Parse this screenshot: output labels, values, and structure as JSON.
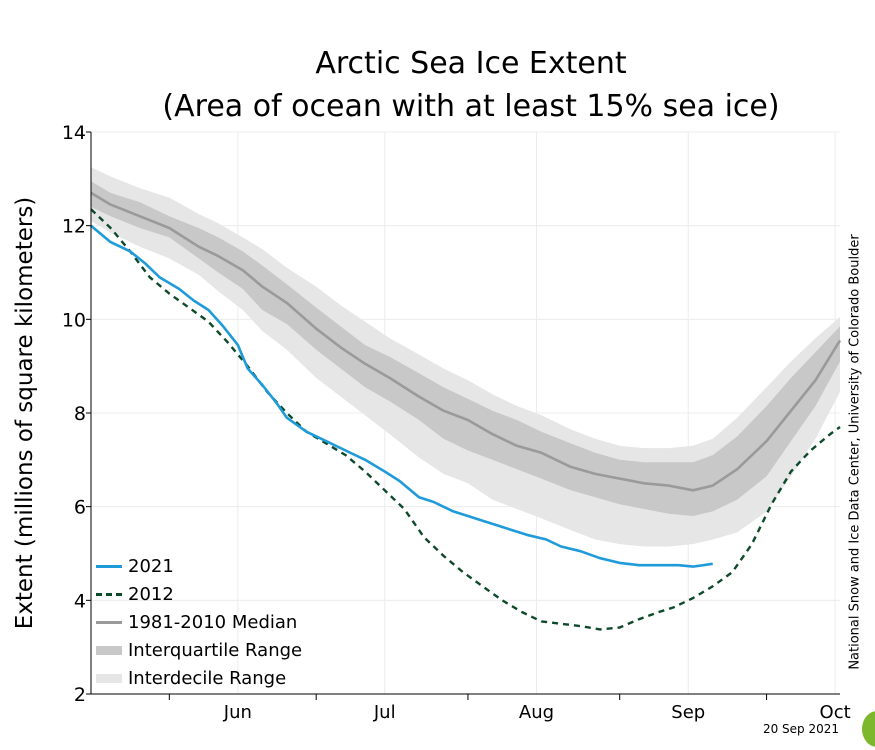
{
  "chart_data": {
    "type": "line",
    "title": "Arctic Sea Ice Extent",
    "subtitle": "(Area of ocean with at least 15% sea ice)",
    "ylabel": "Extent (millions of square kilometers)",
    "xlabel": "",
    "ylim": [
      2,
      14
    ],
    "yticks": [
      2,
      4,
      6,
      8,
      10,
      12,
      14
    ],
    "xlim": [
      136,
      289
    ],
    "xtick_labels": [
      {
        "label": "Jun",
        "day": 166
      },
      {
        "label": "Jul",
        "day": 196
      },
      {
        "label": "Aug",
        "day": 227
      },
      {
        "label": "Sep",
        "day": 258
      },
      {
        "label": "Oct",
        "day": 288
      }
    ],
    "month_boundaries": [
      152,
      182,
      213,
      244,
      274
    ],
    "grid": true,
    "legend_position": "bottom-left",
    "legend": [
      {
        "name": "2021",
        "style": "solid",
        "color": "#1f9bd9"
      },
      {
        "name": "2012",
        "style": "dashed",
        "color": "#0d4a2a"
      },
      {
        "name": "1981-2010 Median",
        "style": "solid",
        "color": "#9a9a9a"
      },
      {
        "name": "Interquartile Range",
        "style": "band",
        "color": "#c8c8c8"
      },
      {
        "name": "Interdecile Range",
        "style": "band",
        "color": "#e6e6e6"
      }
    ],
    "x": [
      136,
      140,
      146,
      152,
      158,
      162,
      167,
      171,
      176,
      182,
      187,
      192,
      197,
      203,
      208,
      213,
      218,
      223,
      228,
      234,
      239,
      244,
      249,
      254,
      259,
      263,
      268,
      274,
      279,
      284,
      289
    ],
    "series": [
      {
        "name": "1981-2010 Median",
        "color": "#9a9a9a",
        "values": [
          12.7,
          12.45,
          12.2,
          11.95,
          11.55,
          11.35,
          11.05,
          10.7,
          10.35,
          9.8,
          9.4,
          9.05,
          8.75,
          8.35,
          8.05,
          7.85,
          7.55,
          7.3,
          7.15,
          6.85,
          6.7,
          6.6,
          6.5,
          6.45,
          6.35,
          6.45,
          6.8,
          7.4,
          8.05,
          8.7,
          9.55
        ]
      },
      {
        "name": "Interquartile Range",
        "color": "#c8c8c8",
        "upper": [
          12.95,
          12.7,
          12.5,
          12.2,
          11.95,
          11.75,
          11.45,
          11.15,
          10.75,
          10.25,
          9.85,
          9.45,
          9.2,
          8.85,
          8.55,
          8.3,
          8.05,
          7.85,
          7.6,
          7.35,
          7.15,
          7.0,
          6.95,
          6.95,
          6.95,
          7.1,
          7.5,
          8.15,
          8.75,
          9.3,
          9.85
        ],
        "lower": [
          12.4,
          12.2,
          11.95,
          11.75,
          11.3,
          11.0,
          10.65,
          10.2,
          9.9,
          9.35,
          8.95,
          8.55,
          8.25,
          7.85,
          7.45,
          7.2,
          7.0,
          6.8,
          6.6,
          6.35,
          6.2,
          6.05,
          5.95,
          5.85,
          5.8,
          5.9,
          6.15,
          6.65,
          7.4,
          8.15,
          9.1
        ]
      },
      {
        "name": "Interdecile Range",
        "color": "#e6e6e6",
        "upper": [
          13.25,
          13.05,
          12.8,
          12.6,
          12.25,
          12.05,
          11.75,
          11.5,
          11.1,
          10.7,
          10.3,
          9.95,
          9.6,
          9.25,
          8.95,
          8.7,
          8.4,
          8.15,
          7.95,
          7.65,
          7.45,
          7.3,
          7.25,
          7.25,
          7.3,
          7.45,
          7.9,
          8.55,
          9.1,
          9.6,
          10.05
        ],
        "lower": [
          12.1,
          11.85,
          11.55,
          11.3,
          10.95,
          10.6,
          10.2,
          9.75,
          9.35,
          8.75,
          8.35,
          7.95,
          7.55,
          7.05,
          6.7,
          6.5,
          6.15,
          5.95,
          5.75,
          5.5,
          5.3,
          5.2,
          5.15,
          5.15,
          5.2,
          5.3,
          5.45,
          5.9,
          6.65,
          7.45,
          8.45
        ]
      },
      {
        "name": "2021",
        "color": "#1f9bd9",
        "x": [
          136,
          140,
          144,
          147,
          150,
          154,
          157,
          160,
          163,
          166,
          168,
          171,
          174,
          176,
          180,
          184,
          188,
          192,
          196,
          199,
          203,
          206,
          210,
          213,
          216,
          219,
          222,
          225,
          229,
          232,
          236,
          240,
          244,
          248,
          252,
          256,
          259,
          263
        ],
        "values": [
          12.0,
          11.65,
          11.45,
          11.2,
          10.9,
          10.65,
          10.4,
          10.2,
          9.85,
          9.45,
          8.95,
          8.6,
          8.2,
          7.9,
          7.6,
          7.4,
          7.2,
          7.0,
          6.75,
          6.55,
          6.2,
          6.1,
          5.9,
          5.8,
          5.7,
          5.6,
          5.5,
          5.4,
          5.3,
          5.15,
          5.05,
          4.9,
          4.8,
          4.75,
          4.75,
          4.75,
          4.72,
          4.78
        ]
      },
      {
        "name": "2012",
        "color": "#0d4a2a",
        "dashed": true,
        "x": [
          136,
          140,
          144,
          148,
          152,
          156,
          160,
          164,
          168,
          172,
          176,
          180,
          184,
          188,
          192,
          196,
          200,
          204,
          208,
          212,
          216,
          220,
          224,
          228,
          232,
          236,
          240,
          244,
          248,
          252,
          255,
          259,
          263,
          267,
          271,
          275,
          279,
          283,
          287,
          289
        ],
        "values": [
          12.35,
          11.95,
          11.45,
          10.9,
          10.55,
          10.25,
          9.95,
          9.5,
          9.0,
          8.45,
          8.0,
          7.6,
          7.35,
          7.1,
          6.75,
          6.35,
          5.95,
          5.35,
          4.95,
          4.6,
          4.3,
          4.0,
          3.75,
          3.55,
          3.5,
          3.45,
          3.38,
          3.42,
          3.6,
          3.75,
          3.85,
          4.05,
          4.3,
          4.6,
          5.2,
          6.05,
          6.75,
          7.2,
          7.55,
          7.7
        ]
      }
    ]
  },
  "credit": "National Snow and Ice Data Center, University of Colorado Boulder",
  "date_stamp": "20 Sep 2021"
}
